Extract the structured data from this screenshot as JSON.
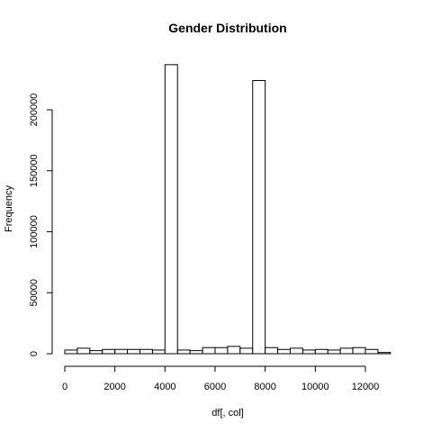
{
  "chart_data": {
    "type": "bar",
    "title": "Gender  Distribution",
    "xlabel": "df[, col]",
    "ylabel": "Frequency",
    "bin_width": 500,
    "bins_start": [
      0,
      500,
      1000,
      1500,
      2000,
      2500,
      3000,
      3500,
      4000,
      4500,
      5000,
      5500,
      6000,
      6500,
      7000,
      7500,
      8000,
      8500,
      9000,
      9500,
      10000,
      10500,
      11000,
      11500,
      12000,
      12500
    ],
    "values": [
      3000,
      4500,
      2500,
      3500,
      3500,
      3500,
      3500,
      3000,
      237000,
      3000,
      2500,
      5000,
      5000,
      6000,
      4500,
      224000,
      5000,
      3500,
      4500,
      3000,
      3500,
      3000,
      4500,
      5000,
      3500,
      1000
    ],
    "xticks": [
      0,
      2000,
      4000,
      6000,
      8000,
      10000,
      12000
    ],
    "xtick_labels": [
      "0",
      "2000",
      "4000",
      "6000",
      "8000",
      "10000",
      "12000"
    ],
    "yticks": [
      0,
      50000,
      100000,
      150000,
      200000
    ],
    "ytick_labels": [
      "0",
      "50000",
      "100000",
      "150000",
      "200000"
    ],
    "xlim": [
      0,
      13000
    ],
    "ylim": [
      0,
      240000
    ],
    "grid": false,
    "bar_fill": "#ffffff",
    "bar_stroke": "#000000"
  }
}
